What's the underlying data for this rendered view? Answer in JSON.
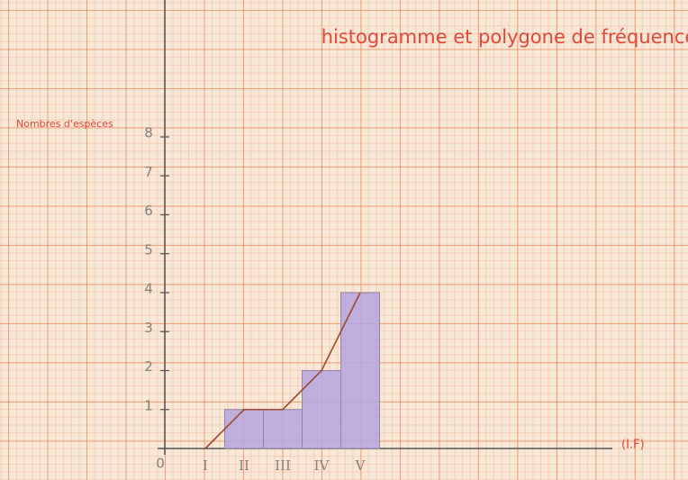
{
  "chart_data": {
    "type": "histogram",
    "title": "histogramme et polygone de fréquence",
    "y_label": "Nombres d'espèces",
    "x_label": "(I.F)",
    "categories": [
      "I",
      "II",
      "III",
      "IV",
      "V"
    ],
    "values": [
      0,
      1,
      1,
      2,
      4
    ],
    "color": "#b6a4df",
    "line_color": "#9c4a2e",
    "ylim": [
      0,
      8
    ],
    "yticks": [
      0,
      1,
      2,
      3,
      4,
      5,
      6,
      7,
      8
    ],
    "grid": true
  }
}
